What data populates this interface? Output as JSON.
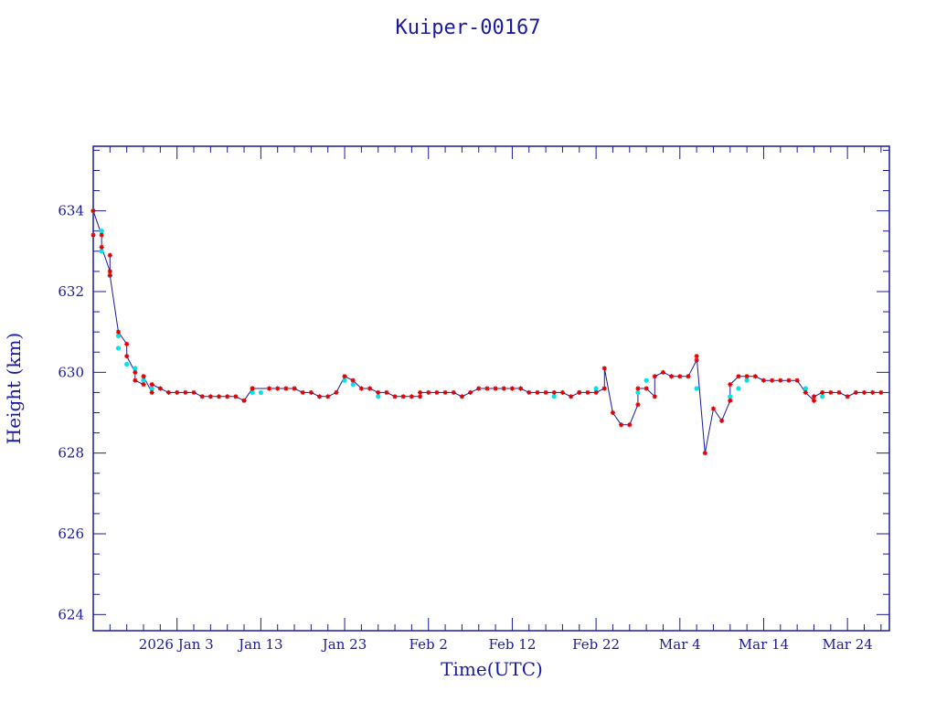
{
  "chart_data": {
    "type": "scatter",
    "title": "Kuiper-00167",
    "xlabel": "Time(UTC)",
    "ylabel": "Height (km)",
    "x_tick_labels": [
      "2026 Jan  3",
      "Jan 13",
      "Jan 23",
      "Feb  2",
      "Feb 12",
      "Feb 22",
      "Mar  4",
      "Mar 14",
      "Mar 24"
    ],
    "xlim": [
      "2025-12-24",
      "2026-03-29"
    ],
    "ylim": [
      623.6,
      635.6
    ],
    "y_ticks": [
      624,
      626,
      628,
      630,
      632,
      634
    ],
    "grid": false,
    "colors": {
      "axis": "#1a1a9e",
      "line": "#1a1a9e",
      "fit_marker": "#00e5e5",
      "obs_marker": "#e00000"
    },
    "series": [
      {
        "marker": "asterisk-red",
        "points": [
          [
            "2025-12-24",
            633.4
          ],
          [
            "2025-12-24",
            634.0
          ],
          [
            "2025-12-25",
            633.4
          ],
          [
            "2025-12-25",
            633.1
          ],
          [
            "2025-12-26",
            632.5
          ],
          [
            "2025-12-26",
            632.9
          ],
          [
            "2025-12-26",
            632.4
          ],
          [
            "2025-12-27",
            631.0
          ],
          [
            "2025-12-28",
            630.7
          ],
          [
            "2025-12-28",
            630.4
          ],
          [
            "2025-12-29",
            630.0
          ],
          [
            "2025-12-29",
            629.8
          ],
          [
            "2025-12-30",
            629.7
          ],
          [
            "2025-12-30",
            629.9
          ],
          [
            "2025-12-31",
            629.5
          ],
          [
            "2025-12-31",
            629.7
          ],
          [
            "2026-01-01",
            629.6
          ],
          [
            "2026-01-02",
            629.5
          ],
          [
            "2026-01-03",
            629.5
          ],
          [
            "2026-01-04",
            629.5
          ],
          [
            "2026-01-05",
            629.5
          ],
          [
            "2026-01-06",
            629.4
          ],
          [
            "2026-01-07",
            629.4
          ],
          [
            "2026-01-08",
            629.4
          ],
          [
            "2026-01-09",
            629.4
          ],
          [
            "2026-01-10",
            629.4
          ],
          [
            "2026-01-11",
            629.3
          ],
          [
            "2026-01-12",
            629.6
          ],
          [
            "2026-01-12",
            629.6
          ],
          [
            "2026-01-14",
            629.6
          ],
          [
            "2026-01-15",
            629.6
          ],
          [
            "2026-01-16",
            629.6
          ],
          [
            "2026-01-17",
            629.6
          ],
          [
            "2026-01-18",
            629.5
          ],
          [
            "2026-01-19",
            629.5
          ],
          [
            "2026-01-20",
            629.4
          ],
          [
            "2026-01-21",
            629.4
          ],
          [
            "2026-01-22",
            629.5
          ],
          [
            "2026-01-23",
            629.9
          ],
          [
            "2026-01-24",
            629.8
          ],
          [
            "2026-01-25",
            629.6
          ],
          [
            "2026-01-26",
            629.6
          ],
          [
            "2026-01-27",
            629.5
          ],
          [
            "2026-01-28",
            629.5
          ],
          [
            "2026-01-29",
            629.4
          ],
          [
            "2026-01-30",
            629.4
          ],
          [
            "2026-01-31",
            629.4
          ],
          [
            "2026-02-01",
            629.4
          ],
          [
            "2026-02-01",
            629.5
          ],
          [
            "2026-02-02",
            629.5
          ],
          [
            "2026-02-03",
            629.5
          ],
          [
            "2026-02-04",
            629.5
          ],
          [
            "2026-02-05",
            629.5
          ],
          [
            "2026-02-06",
            629.4
          ],
          [
            "2026-02-07",
            629.5
          ],
          [
            "2026-02-08",
            629.6
          ],
          [
            "2026-02-09",
            629.6
          ],
          [
            "2026-02-10",
            629.6
          ],
          [
            "2026-02-11",
            629.6
          ],
          [
            "2026-02-12",
            629.6
          ],
          [
            "2026-02-13",
            629.6
          ],
          [
            "2026-02-14",
            629.5
          ],
          [
            "2026-02-15",
            629.5
          ],
          [
            "2026-02-16",
            629.5
          ],
          [
            "2026-02-17",
            629.5
          ],
          [
            "2026-02-18",
            629.5
          ],
          [
            "2026-02-19",
            629.4
          ],
          [
            "2026-02-20",
            629.5
          ],
          [
            "2026-02-21",
            629.5
          ],
          [
            "2026-02-22",
            629.5
          ],
          [
            "2026-02-23",
            629.6
          ],
          [
            "2026-02-23",
            630.1
          ],
          [
            "2026-02-24",
            629.0
          ],
          [
            "2026-02-25",
            628.7
          ],
          [
            "2026-02-26",
            628.7
          ],
          [
            "2026-02-27",
            629.2
          ],
          [
            "2026-02-27",
            629.6
          ],
          [
            "2026-02-28",
            629.6
          ],
          [
            "2026-03-01",
            629.4
          ],
          [
            "2026-03-01",
            629.9
          ],
          [
            "2026-03-02",
            630.0
          ],
          [
            "2026-03-03",
            629.9
          ],
          [
            "2026-03-04",
            629.9
          ],
          [
            "2026-03-05",
            629.9
          ],
          [
            "2026-03-06",
            630.3
          ],
          [
            "2026-03-06",
            630.4
          ],
          [
            "2026-03-07",
            628.0
          ],
          [
            "2026-03-08",
            629.1
          ],
          [
            "2026-03-09",
            628.8
          ],
          [
            "2026-03-10",
            629.3
          ],
          [
            "2026-03-10",
            629.7
          ],
          [
            "2026-03-11",
            629.9
          ],
          [
            "2026-03-12",
            629.9
          ],
          [
            "2026-03-13",
            629.9
          ],
          [
            "2026-03-14",
            629.8
          ],
          [
            "2026-03-15",
            629.8
          ],
          [
            "2026-03-16",
            629.8
          ],
          [
            "2026-03-17",
            629.8
          ],
          [
            "2026-03-18",
            629.8
          ],
          [
            "2026-03-19",
            629.5
          ],
          [
            "2026-03-20",
            629.3
          ],
          [
            "2026-03-20",
            629.4
          ],
          [
            "2026-03-21",
            629.5
          ],
          [
            "2026-03-22",
            629.5
          ],
          [
            "2026-03-23",
            629.5
          ],
          [
            "2026-03-24",
            629.4
          ],
          [
            "2026-03-25",
            629.5
          ],
          [
            "2026-03-26",
            629.5
          ],
          [
            "2026-03-27",
            629.5
          ],
          [
            "2026-03-28",
            629.5
          ]
        ]
      },
      {
        "marker": "dot-cyan",
        "points": [
          [
            "2025-12-24",
            634.0
          ],
          [
            "2025-12-25",
            633.5
          ],
          [
            "2025-12-25",
            633.0
          ],
          [
            "2025-12-26",
            632.4
          ],
          [
            "2025-12-27",
            630.9
          ],
          [
            "2025-12-27",
            630.6
          ],
          [
            "2025-12-28",
            630.2
          ],
          [
            "2025-12-29",
            630.1
          ],
          [
            "2025-12-30",
            629.8
          ],
          [
            "2025-12-31",
            629.6
          ],
          [
            "2026-01-12",
            629.5
          ],
          [
            "2026-01-13",
            629.5
          ],
          [
            "2026-01-23",
            629.8
          ],
          [
            "2026-01-24",
            629.7
          ],
          [
            "2026-01-27",
            629.4
          ],
          [
            "2026-02-17",
            629.4
          ],
          [
            "2026-02-20",
            629.5
          ],
          [
            "2026-02-22",
            629.6
          ],
          [
            "2026-02-27",
            629.5
          ],
          [
            "2026-02-28",
            629.8
          ],
          [
            "2026-03-06",
            629.6
          ],
          [
            "2026-03-10",
            629.4
          ],
          [
            "2026-03-11",
            629.6
          ],
          [
            "2026-03-12",
            629.8
          ],
          [
            "2026-03-19",
            629.6
          ],
          [
            "2026-03-21",
            629.4
          ]
        ]
      }
    ]
  }
}
